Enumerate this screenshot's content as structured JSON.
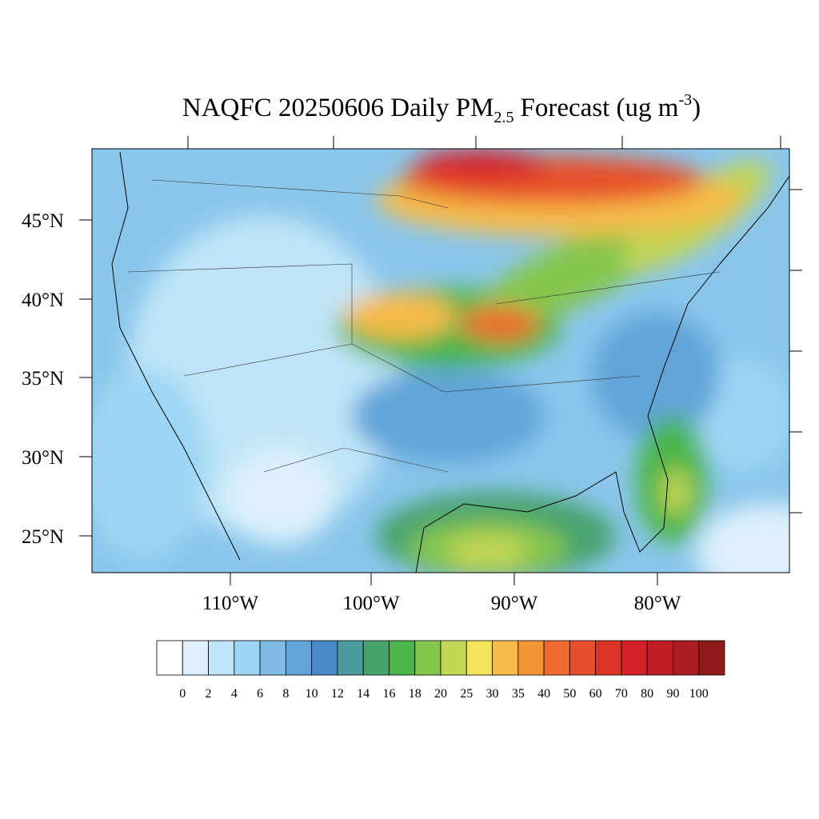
{
  "map": {
    "title": {
      "main": "NAQFC 20250606 Daily PM",
      "subscript": "2.5",
      "rest": "Forecast (ug m",
      "superscript": "-3",
      "end": ")"
    },
    "lat_labels": [
      "45°N",
      "40°N",
      "35°N",
      "30°N",
      "25°N"
    ],
    "lon_labels": [
      "110°W",
      "100°W",
      "90°W",
      "80°W"
    ],
    "colorbar": {
      "levels": [
        0,
        2,
        4,
        6,
        8,
        10,
        12,
        14,
        16,
        18,
        20,
        25,
        30,
        35,
        40,
        50,
        60,
        70,
        80,
        90,
        100
      ],
      "colors": [
        "#ffffff",
        "#ddf0fb",
        "#bfe5f8",
        "#9dd6f4",
        "#7fbbe3",
        "#62a4d8",
        "#4a88c7",
        "#4a9a9e",
        "#46a36e",
        "#4ab54a",
        "#85c64e",
        "#c3d655",
        "#f5e35a",
        "#f6bb48",
        "#f39638",
        "#ef6a2c",
        "#e74f2c",
        "#db3427",
        "#d42029",
        "#bf1c25",
        "#a81c22",
        "#8e1a1c"
      ]
    }
  }
}
